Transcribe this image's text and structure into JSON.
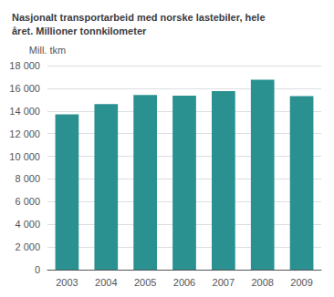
{
  "chart_data": {
    "type": "bar",
    "title": "Nasjonalt transportarbeid med norske lastebiler, hele\nåret. Millioner tonnkilometer",
    "y_label": "Mill. tkm",
    "categories": [
      "2003",
      "2004",
      "2005",
      "2006",
      "2007",
      "2008",
      "2009"
    ],
    "values": [
      13700,
      14600,
      15400,
      15350,
      15750,
      16750,
      15300
    ],
    "color": "#2a9090",
    "ylim": [
      0,
      18000
    ],
    "yticks": [
      0,
      {
        "value": 2000,
        "label": "2 000"
      },
      {
        "value": 4000,
        "label": "4 000"
      },
      {
        "value": 6000,
        "label": "6 000"
      },
      {
        "value": 8000,
        "label": "8 000"
      },
      {
        "value": 10000,
        "label": "10 000"
      },
      {
        "value": 12000,
        "label": "12 000"
      },
      {
        "value": 14000,
        "label": "14 000"
      },
      {
        "value": 16000,
        "label": "16 000"
      },
      {
        "value": 18000,
        "label": "18 000"
      }
    ],
    "grid": true
  }
}
